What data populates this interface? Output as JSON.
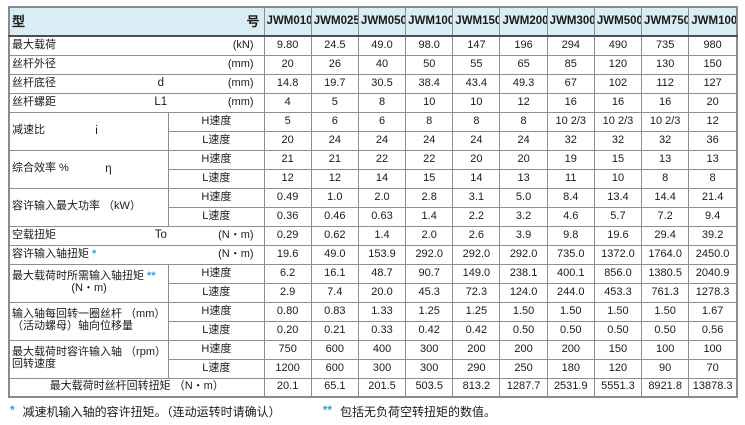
{
  "table": {
    "header": {
      "title_part1": "型",
      "title_part2": "号"
    },
    "models": [
      "JWM010",
      "JWM025",
      "JWM050",
      "JWM100",
      "JWM150",
      "JWM200",
      "JWM300",
      "JWM500",
      "JWM750",
      "JWM1000"
    ],
    "rows": [
      {
        "kind": "plain",
        "label": "最大载荷",
        "symbol": "",
        "star": "",
        "unit": "(kN)",
        "values": [
          "9.80",
          "24.5",
          "49.0",
          "98.0",
          "147",
          "196",
          "294",
          "490",
          "735",
          "980"
        ]
      },
      {
        "kind": "plain",
        "label": "丝杆外径",
        "symbol": "",
        "star": "",
        "unit": "(mm)",
        "values": [
          "20",
          "26",
          "40",
          "50",
          "55",
          "65",
          "85",
          "120",
          "130",
          "150"
        ]
      },
      {
        "kind": "plain",
        "label": "丝杆底径",
        "symbol": "d",
        "star": "",
        "unit": "(mm)",
        "values": [
          "14.8",
          "19.7",
          "30.5",
          "38.4",
          "43.4",
          "49.3",
          "67",
          "102",
          "112",
          "127"
        ]
      },
      {
        "kind": "plain",
        "label": "丝杆螺距",
        "symbol": "L1",
        "star": "",
        "unit": "(mm)",
        "values": [
          "4",
          "5",
          "8",
          "10",
          "10",
          "12",
          "16",
          "16",
          "16",
          "20"
        ]
      },
      {
        "kind": "group",
        "label": "减速比",
        "symbol": "i",
        "star": "",
        "label2": "",
        "sub": [
          {
            "speed": "H速度",
            "values": [
              "5",
              "6",
              "6",
              "8",
              "8",
              "8",
              "10 2/3",
              "10 2/3",
              "10 2/3",
              "12"
            ]
          },
          {
            "speed": "L速度",
            "values": [
              "20",
              "24",
              "24",
              "24",
              "24",
              "24",
              "32",
              "32",
              "32",
              "36"
            ]
          }
        ]
      },
      {
        "kind": "group",
        "label": "综合效率  %",
        "symbol": "η",
        "star": "",
        "label2": "",
        "sub": [
          {
            "speed": "H速度",
            "values": [
              "21",
              "21",
              "22",
              "22",
              "20",
              "20",
              "19",
              "15",
              "13",
              "13"
            ]
          },
          {
            "speed": "L速度",
            "values": [
              "12",
              "12",
              "14",
              "15",
              "14",
              "13",
              "11",
              "10",
              "8",
              "8"
            ]
          }
        ]
      },
      {
        "kind": "group",
        "label": "容许输入最大功率 （kW）",
        "symbol": "",
        "star": "",
        "label2": "",
        "sub": [
          {
            "speed": "H速度",
            "values": [
              "0.49",
              "1.0",
              "2.0",
              "2.8",
              "3.1",
              "5.0",
              "8.4",
              "13.4",
              "14.4",
              "21.4"
            ]
          },
          {
            "speed": "L速度",
            "values": [
              "0.36",
              "0.46",
              "0.63",
              "1.4",
              "2.2",
              "3.2",
              "4.6",
              "5.7",
              "7.2",
              "9.4"
            ]
          }
        ]
      },
      {
        "kind": "plain",
        "label": "空载扭矩",
        "symbol": "To",
        "star": "",
        "unit": "(N・m)",
        "values": [
          "0.29",
          "0.62",
          "1.4",
          "2.0",
          "2.6",
          "3.9",
          "9.8",
          "19.6",
          "29.4",
          "39.2"
        ]
      },
      {
        "kind": "plain",
        "label": "容许输入轴扭矩",
        "symbol": "",
        "star": "*",
        "unit": "(N・m)",
        "values": [
          "19.6",
          "49.0",
          "153.9",
          "292.0",
          "292.0",
          "292.0",
          "735.0",
          "1372.0",
          "1764.0",
          "2450.0"
        ]
      },
      {
        "kind": "group",
        "label": "最大载荷时所需输入轴扭矩",
        "symbol": "",
        "star": "**",
        "label2": "(N・m)",
        "sub": [
          {
            "speed": "H速度",
            "values": [
              "6.2",
              "16.1",
              "48.7",
              "90.7",
              "149.0",
              "238.1",
              "400.1",
              "856.0",
              "1380.5",
              "2040.9"
            ]
          },
          {
            "speed": "L速度",
            "values": [
              "2.9",
              "7.4",
              "20.0",
              "45.3",
              "72.3",
              "124.0",
              "244.0",
              "453.3",
              "761.3",
              "1278.3"
            ]
          }
        ]
      },
      {
        "kind": "group",
        "label": "输入轴每回转一圈丝杆 （mm）",
        "symbol": "",
        "star": "",
        "label2": "（活动螺母）轴向位移量",
        "sub": [
          {
            "speed": "H速度",
            "values": [
              "0.80",
              "0.83",
              "1.33",
              "1.25",
              "1.25",
              "1.50",
              "1.50",
              "1.50",
              "1.50",
              "1.67"
            ]
          },
          {
            "speed": "L速度",
            "values": [
              "0.20",
              "0.21",
              "0.33",
              "0.42",
              "0.42",
              "0.50",
              "0.50",
              "0.50",
              "0.50",
              "0.56"
            ]
          }
        ]
      },
      {
        "kind": "group",
        "label": "最大载荷时容许输入轴 （rpm）",
        "symbol": "",
        "star": "",
        "label2": "回转速度",
        "sub": [
          {
            "speed": "H速度",
            "values": [
              "750",
              "600",
              "400",
              "300",
              "200",
              "200",
              "200",
              "150",
              "100",
              "100"
            ]
          },
          {
            "speed": "L速度",
            "values": [
              "1200",
              "600",
              "300",
              "300",
              "290",
              "250",
              "180",
              "120",
              "90",
              "70"
            ]
          }
        ]
      },
      {
        "kind": "total",
        "label": "最大载荷时丝杆回转扭矩 （N・m）",
        "star": "",
        "values": [
          "20.1",
          "65.1",
          "201.5",
          "503.5",
          "813.2",
          "1287.7",
          "2531.9",
          "5551.3",
          "8921.8",
          "13878.3"
        ]
      }
    ]
  },
  "footnotes": [
    {
      "star": "*",
      "text": "减速机输入轴的容许扭矩。（连动运转时请确认）"
    },
    {
      "star": "**",
      "text": "包括无负荷空转扭矩的数值。"
    }
  ]
}
